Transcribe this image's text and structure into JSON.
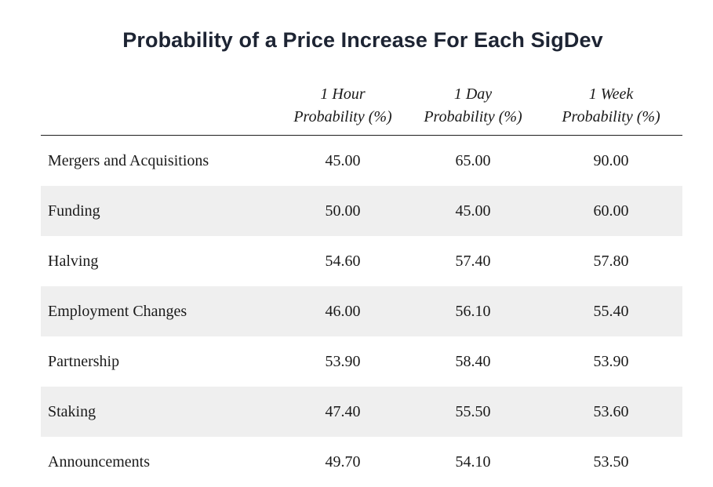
{
  "title": "Probability of a Price Increase For Each SigDev",
  "chart_data": {
    "type": "table",
    "title": "Probability of a Price Increase For Each SigDev",
    "columns": [
      {
        "line1": "1 Hour",
        "line2": "Probability (%)"
      },
      {
        "line1": "1 Day",
        "line2": "Probability (%)"
      },
      {
        "line1": "1 Week",
        "line2": "Probability (%)"
      }
    ],
    "rows": [
      {
        "label": "Mergers and Acquisitions",
        "values": [
          "45.00",
          "65.00",
          "90.00"
        ]
      },
      {
        "label": "Funding",
        "values": [
          "50.00",
          "45.00",
          "60.00"
        ]
      },
      {
        "label": "Halving",
        "values": [
          "54.60",
          "57.40",
          "57.80"
        ]
      },
      {
        "label": "Employment Changes",
        "values": [
          "46.00",
          "56.10",
          "55.40"
        ]
      },
      {
        "label": "Partnership",
        "values": [
          "53.90",
          "58.40",
          "53.90"
        ]
      },
      {
        "label": "Staking",
        "values": [
          "47.40",
          "55.50",
          "53.60"
        ]
      },
      {
        "label": "Announcements",
        "values": [
          "49.70",
          "54.10",
          "53.50"
        ]
      }
    ]
  }
}
